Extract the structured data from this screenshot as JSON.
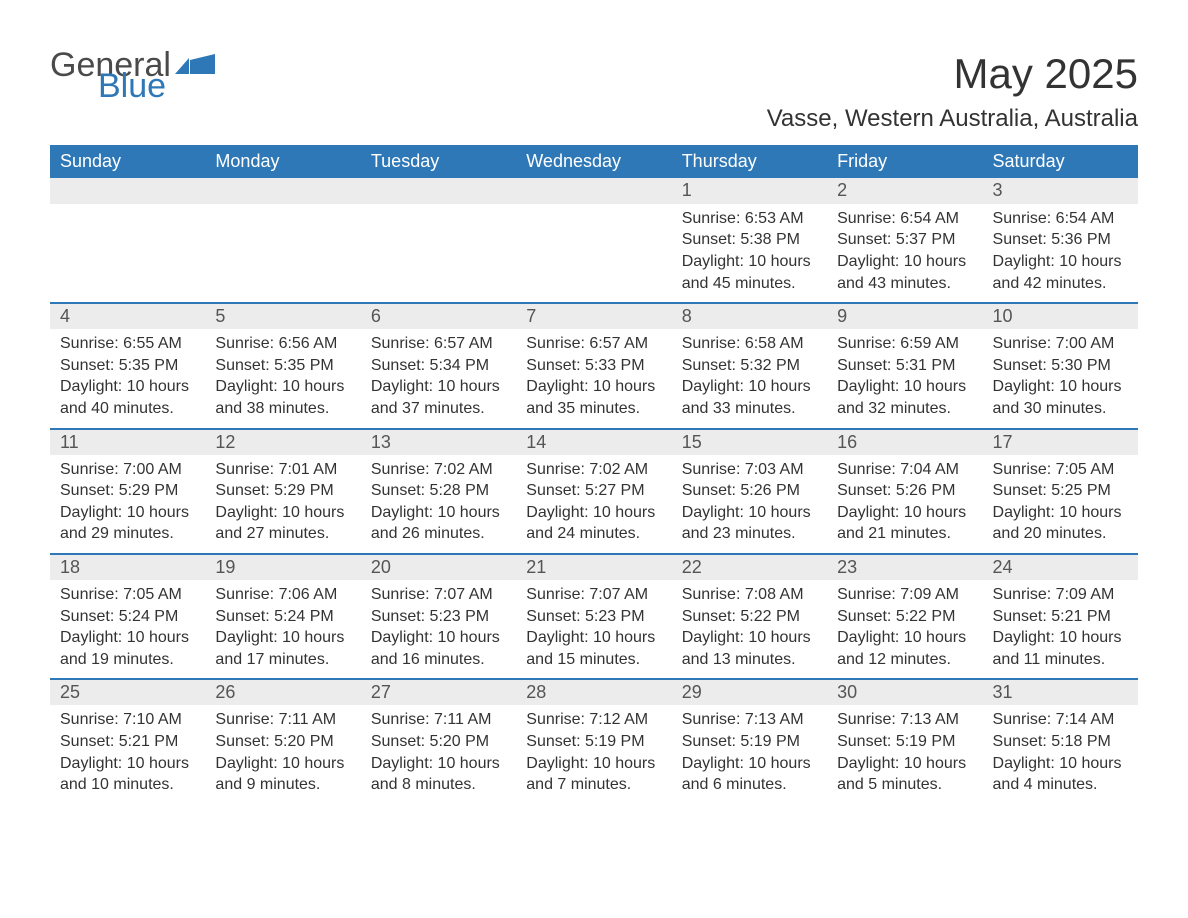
{
  "logo": {
    "word1": "General",
    "word2": "Blue",
    "accent": "#2f78b7",
    "text_gray": "#4a4a4a"
  },
  "title": "May 2025",
  "location": "Vasse, Western Australia, Australia",
  "colors": {
    "header_bg": "#2f78b7",
    "header_text": "#ffffff",
    "daynum_bg": "#ececec",
    "body_text": "#333333",
    "row_border": "#2f78b7",
    "page_bg": "#ffffff"
  },
  "typography": {
    "title_fontsize": 42,
    "location_fontsize": 24,
    "dayheader_fontsize": 18,
    "daynum_fontsize": 18,
    "body_fontsize": 16,
    "font_family": "Arial"
  },
  "layout": {
    "columns": 7,
    "weeks": 5,
    "first_weekday_index": 4
  },
  "day_headers": [
    "Sunday",
    "Monday",
    "Tuesday",
    "Wednesday",
    "Thursday",
    "Friday",
    "Saturday"
  ],
  "weeks": [
    [
      null,
      null,
      null,
      null,
      {
        "n": "1",
        "sunrise": "6:53 AM",
        "sunset": "5:38 PM",
        "daylight": "10 hours and 45 minutes."
      },
      {
        "n": "2",
        "sunrise": "6:54 AM",
        "sunset": "5:37 PM",
        "daylight": "10 hours and 43 minutes."
      },
      {
        "n": "3",
        "sunrise": "6:54 AM",
        "sunset": "5:36 PM",
        "daylight": "10 hours and 42 minutes."
      }
    ],
    [
      {
        "n": "4",
        "sunrise": "6:55 AM",
        "sunset": "5:35 PM",
        "daylight": "10 hours and 40 minutes."
      },
      {
        "n": "5",
        "sunrise": "6:56 AM",
        "sunset": "5:35 PM",
        "daylight": "10 hours and 38 minutes."
      },
      {
        "n": "6",
        "sunrise": "6:57 AM",
        "sunset": "5:34 PM",
        "daylight": "10 hours and 37 minutes."
      },
      {
        "n": "7",
        "sunrise": "6:57 AM",
        "sunset": "5:33 PM",
        "daylight": "10 hours and 35 minutes."
      },
      {
        "n": "8",
        "sunrise": "6:58 AM",
        "sunset": "5:32 PM",
        "daylight": "10 hours and 33 minutes."
      },
      {
        "n": "9",
        "sunrise": "6:59 AM",
        "sunset": "5:31 PM",
        "daylight": "10 hours and 32 minutes."
      },
      {
        "n": "10",
        "sunrise": "7:00 AM",
        "sunset": "5:30 PM",
        "daylight": "10 hours and 30 minutes."
      }
    ],
    [
      {
        "n": "11",
        "sunrise": "7:00 AM",
        "sunset": "5:29 PM",
        "daylight": "10 hours and 29 minutes."
      },
      {
        "n": "12",
        "sunrise": "7:01 AM",
        "sunset": "5:29 PM",
        "daylight": "10 hours and 27 minutes."
      },
      {
        "n": "13",
        "sunrise": "7:02 AM",
        "sunset": "5:28 PM",
        "daylight": "10 hours and 26 minutes."
      },
      {
        "n": "14",
        "sunrise": "7:02 AM",
        "sunset": "5:27 PM",
        "daylight": "10 hours and 24 minutes."
      },
      {
        "n": "15",
        "sunrise": "7:03 AM",
        "sunset": "5:26 PM",
        "daylight": "10 hours and 23 minutes."
      },
      {
        "n": "16",
        "sunrise": "7:04 AM",
        "sunset": "5:26 PM",
        "daylight": "10 hours and 21 minutes."
      },
      {
        "n": "17",
        "sunrise": "7:05 AM",
        "sunset": "5:25 PM",
        "daylight": "10 hours and 20 minutes."
      }
    ],
    [
      {
        "n": "18",
        "sunrise": "7:05 AM",
        "sunset": "5:24 PM",
        "daylight": "10 hours and 19 minutes."
      },
      {
        "n": "19",
        "sunrise": "7:06 AM",
        "sunset": "5:24 PM",
        "daylight": "10 hours and 17 minutes."
      },
      {
        "n": "20",
        "sunrise": "7:07 AM",
        "sunset": "5:23 PM",
        "daylight": "10 hours and 16 minutes."
      },
      {
        "n": "21",
        "sunrise": "7:07 AM",
        "sunset": "5:23 PM",
        "daylight": "10 hours and 15 minutes."
      },
      {
        "n": "22",
        "sunrise": "7:08 AM",
        "sunset": "5:22 PM",
        "daylight": "10 hours and 13 minutes."
      },
      {
        "n": "23",
        "sunrise": "7:09 AM",
        "sunset": "5:22 PM",
        "daylight": "10 hours and 12 minutes."
      },
      {
        "n": "24",
        "sunrise": "7:09 AM",
        "sunset": "5:21 PM",
        "daylight": "10 hours and 11 minutes."
      }
    ],
    [
      {
        "n": "25",
        "sunrise": "7:10 AM",
        "sunset": "5:21 PM",
        "daylight": "10 hours and 10 minutes."
      },
      {
        "n": "26",
        "sunrise": "7:11 AM",
        "sunset": "5:20 PM",
        "daylight": "10 hours and 9 minutes."
      },
      {
        "n": "27",
        "sunrise": "7:11 AM",
        "sunset": "5:20 PM",
        "daylight": "10 hours and 8 minutes."
      },
      {
        "n": "28",
        "sunrise": "7:12 AM",
        "sunset": "5:19 PM",
        "daylight": "10 hours and 7 minutes."
      },
      {
        "n": "29",
        "sunrise": "7:13 AM",
        "sunset": "5:19 PM",
        "daylight": "10 hours and 6 minutes."
      },
      {
        "n": "30",
        "sunrise": "7:13 AM",
        "sunset": "5:19 PM",
        "daylight": "10 hours and 5 minutes."
      },
      {
        "n": "31",
        "sunrise": "7:14 AM",
        "sunset": "5:18 PM",
        "daylight": "10 hours and 4 minutes."
      }
    ]
  ],
  "labels": {
    "sunrise": "Sunrise: ",
    "sunset": "Sunset: ",
    "daylight": "Daylight: "
  }
}
